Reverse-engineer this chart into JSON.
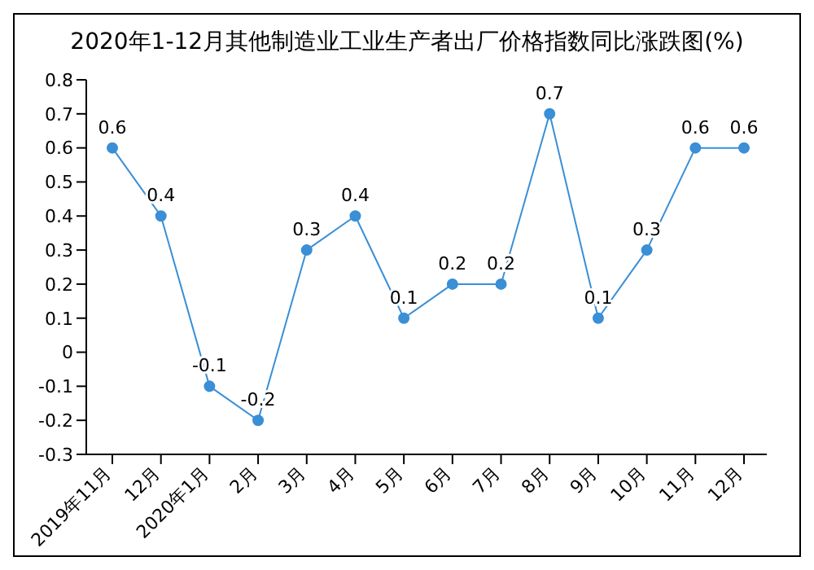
{
  "chart_data": {
    "type": "line",
    "title": "2020年1-12月其他制造业工业生产者出厂价格指数同比涨跌图(%)",
    "categories": [
      "2019年11月",
      "12月",
      "2020年1月",
      "2月",
      "3月",
      "4月",
      "5月",
      "6月",
      "7月",
      "8月",
      "9月",
      "10月",
      "11月",
      "12月"
    ],
    "series": [
      {
        "color": "#3a8fd6",
        "values": [
          0.6,
          0.4,
          -0.1,
          -0.2,
          0.3,
          0.4,
          0.1,
          0.2,
          0.2,
          0.7,
          0.1,
          0.3,
          0.6,
          0.6
        ]
      }
    ],
    "ylim": [
      -0.3,
      0.8
    ],
    "yticks": [
      -0.3,
      -0.2,
      -0.1,
      0,
      0.1,
      0.2,
      0.3,
      0.4,
      0.5,
      0.6,
      0.7,
      0.8
    ],
    "grid": false,
    "legend": false,
    "marker": "circle",
    "line_style": "solid",
    "data_labels": true
  }
}
